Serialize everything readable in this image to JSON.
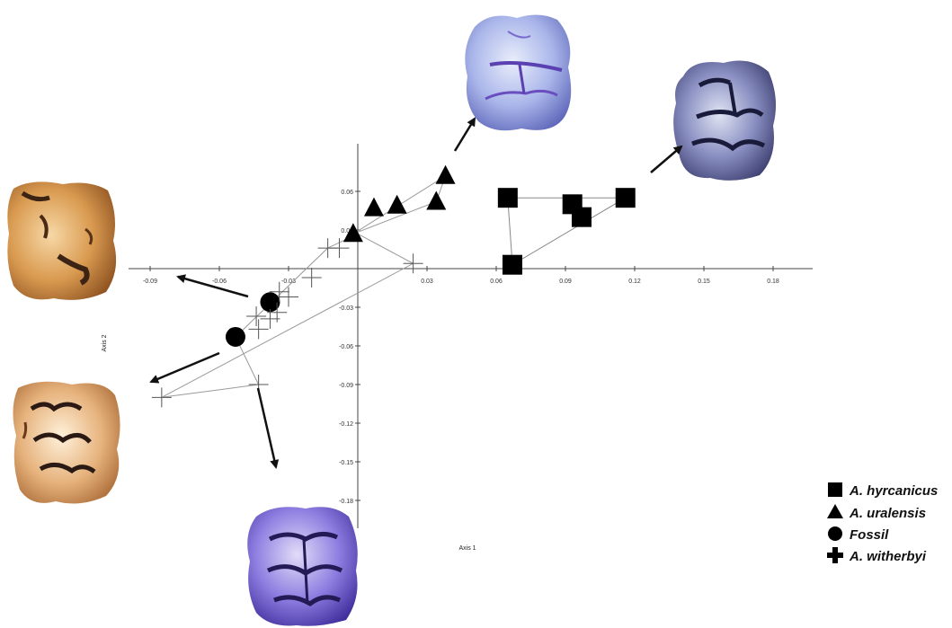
{
  "chart_data": {
    "type": "scatter",
    "xlabel": "Axis 1",
    "ylabel": "Axis 2",
    "xticks": [
      "-0.09",
      "-0.06",
      "-0.03",
      "0.03",
      "0.06",
      "0.09",
      "0.12",
      "0.15",
      "0.18"
    ],
    "xtick_values": [
      -0.09,
      -0.06,
      -0.03,
      0.03,
      0.06,
      0.09,
      0.12,
      0.15,
      0.18
    ],
    "yticks": [
      "0.06",
      "0.03",
      "-0.03",
      "-0.06",
      "-0.09",
      "-0.12",
      "-0.15",
      "-0.18"
    ],
    "ytick_values": [
      0.06,
      0.03,
      -0.03,
      -0.06,
      -0.09,
      -0.12,
      -0.15,
      -0.18
    ],
    "xlim": [
      -0.1,
      0.2
    ],
    "ylim": [
      -0.2,
      0.1
    ],
    "grid": false,
    "legend_position": "bottom-right",
    "series": [
      {
        "name": "A. hyrcanicus",
        "marker": "square",
        "points": [
          [
            0.065,
            0.055
          ],
          [
            0.093,
            0.05
          ],
          [
            0.097,
            0.04
          ],
          [
            0.116,
            0.055
          ],
          [
            0.067,
            0.003
          ]
        ],
        "hull": [
          [
            0.065,
            0.055
          ],
          [
            0.116,
            0.055
          ],
          [
            0.067,
            0.003
          ]
        ]
      },
      {
        "name": "A. uralensis",
        "marker": "triangle",
        "points": [
          [
            -0.002,
            0.027
          ],
          [
            0.007,
            0.047
          ],
          [
            0.017,
            0.049
          ],
          [
            0.034,
            0.052
          ],
          [
            0.038,
            0.072
          ]
        ],
        "hull": [
          [
            -0.002,
            0.027
          ],
          [
            0.038,
            0.072
          ],
          [
            0.034,
            0.052
          ]
        ]
      },
      {
        "name": "Fossil",
        "marker": "circle",
        "points": [
          [
            -0.038,
            -0.026
          ],
          [
            -0.053,
            -0.053
          ]
        ],
        "hull": []
      },
      {
        "name": "A. witherbyi",
        "marker": "plus",
        "points": [
          [
            -0.013,
            0.016
          ],
          [
            -0.008,
            0.016
          ],
          [
            0.024,
            0.004
          ],
          [
            -0.02,
            -0.007
          ],
          [
            -0.034,
            -0.018
          ],
          [
            -0.03,
            -0.022
          ],
          [
            -0.035,
            -0.034
          ],
          [
            -0.038,
            -0.039
          ],
          [
            -0.044,
            -0.037
          ],
          [
            -0.043,
            -0.047
          ],
          [
            -0.043,
            -0.09
          ],
          [
            -0.085,
            -0.1
          ]
        ],
        "hull": [
          [
            -0.013,
            0.016
          ],
          [
            0.0,
            0.027
          ],
          [
            0.024,
            0.004
          ],
          [
            -0.085,
            -0.1
          ],
          [
            -0.043,
            -0.09
          ],
          [
            -0.053,
            -0.053
          ]
        ]
      }
    ]
  },
  "images": [
    {
      "name": "tooth-photo-top",
      "tone": "#8f9fe0",
      "groove": "#4a3da0"
    },
    {
      "name": "tooth-photo-top-right",
      "tone": "#6a6ea8",
      "groove": "#1e2044"
    },
    {
      "name": "tooth-photo-left-upper",
      "tone": "#d59a55",
      "groove": "#3c2414"
    },
    {
      "name": "tooth-photo-left-lower",
      "tone": "#e2b07a",
      "groove": "#2b1a14"
    },
    {
      "name": "tooth-photo-bottom",
      "tone": "#7d6cd0",
      "groove": "#241a55"
    }
  ],
  "colors": {
    "marker": "#000000",
    "hull": "#999999",
    "axis": "#444444",
    "arrow": "#111111"
  }
}
